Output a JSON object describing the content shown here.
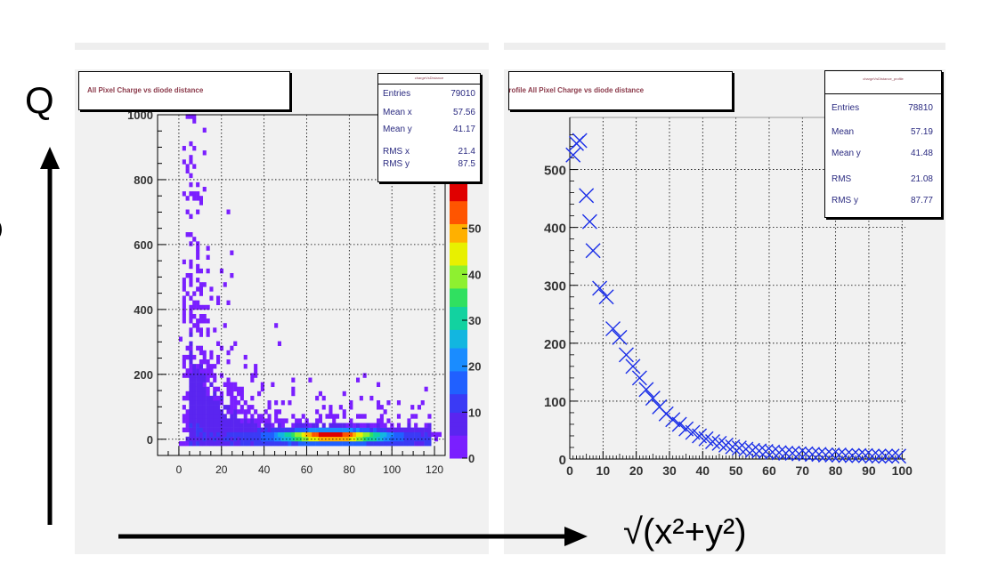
{
  "annotations": {
    "q_label": "Q",
    "x_label": "√(x²+y²)",
    "left_partial": ")"
  },
  "chart_data": [
    {
      "type": "heatmap",
      "title": "All Pixel Charge vs diode distance",
      "stats": {
        "box_title": "chargeVsDistance",
        "rows": [
          {
            "label": "Entries",
            "value": "79010"
          },
          {
            "label": "Mean x",
            "value": "57.56"
          },
          {
            "label": "Mean y",
            "value": "41.17"
          },
          {
            "label": "RMS x",
            "value": "21.4"
          },
          {
            "label": "RMS y",
            "value": "87.5"
          }
        ]
      },
      "xlim": [
        -10,
        125
      ],
      "ylim": [
        -50,
        1000
      ],
      "x_ticks": [
        0,
        20,
        40,
        60,
        80,
        100,
        120
      ],
      "y_ticks": [
        0,
        200,
        400,
        600,
        800,
        1000
      ],
      "y_tick_labels": [
        "0",
        "200",
        "400",
        "600",
        "800",
        "1000"
      ],
      "colorbar_ticks": [
        0,
        10,
        20,
        30,
        40,
        50
      ],
      "colorbar_tick_labels": [
        "0",
        "10",
        "20",
        "30",
        "40",
        "50"
      ],
      "zlim": [
        0,
        60
      ],
      "grid": true,
      "legend": "none"
    },
    {
      "type": "scatter",
      "title": "Profile All Pixel Charge vs diode distance",
      "stats": {
        "box_title": "chargeVsDistance_profile",
        "rows": [
          {
            "label": "Entries",
            "value": "78810"
          },
          {
            "label": "Mean",
            "value": "57.19"
          },
          {
            "label": "Mean y",
            "value": "41.48"
          },
          {
            "label": "RMS",
            "value": "21.08"
          },
          {
            "label": "RMS y",
            "value": "87.77"
          }
        ]
      },
      "xlim": [
        0,
        101
      ],
      "ylim": [
        0,
        590
      ],
      "x_ticks": [
        0,
        10,
        20,
        30,
        40,
        50,
        60,
        70,
        80,
        90,
        100
      ],
      "y_ticks": [
        0,
        100,
        200,
        300,
        400,
        500
      ],
      "x": [
        1,
        2,
        3,
        5,
        6,
        7,
        9,
        11,
        13,
        15,
        17,
        19,
        21,
        23,
        25,
        27,
        29,
        31,
        33,
        35,
        37,
        39,
        41,
        43,
        45,
        47,
        49,
        51,
        53,
        55,
        57,
        59,
        61,
        63,
        65,
        67,
        69,
        71,
        73,
        75,
        77,
        79,
        81,
        83,
        85,
        87,
        89,
        91,
        93,
        95,
        97,
        99
      ],
      "y": [
        525,
        545,
        550,
        455,
        410,
        360,
        295,
        280,
        225,
        210,
        180,
        160,
        140,
        120,
        105,
        90,
        78,
        68,
        60,
        52,
        46,
        40,
        35,
        30,
        27,
        24,
        21,
        19,
        17,
        15,
        14,
        13,
        12,
        11,
        10,
        10,
        9,
        9,
        8,
        8,
        7,
        7,
        7,
        6,
        6,
        6,
        6,
        5,
        5,
        5,
        5,
        5
      ],
      "grid": true,
      "legend": "none"
    }
  ]
}
